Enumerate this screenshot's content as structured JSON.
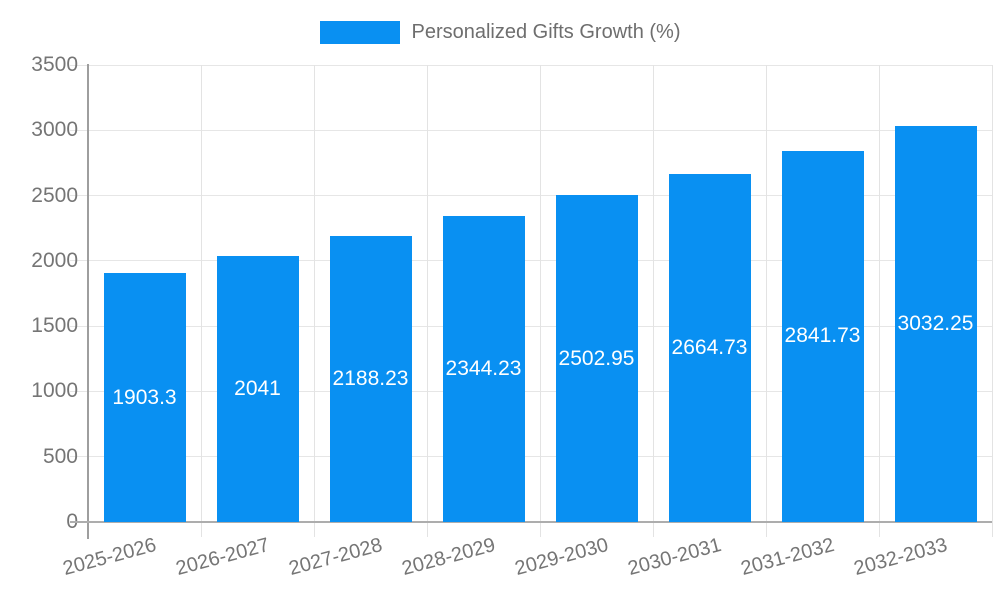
{
  "chart_data": {
    "type": "bar",
    "title": "Personalized Gifts Growth (%)",
    "categories": [
      "2025-2026",
      "2026-2027",
      "2027-2028",
      "2028-2029",
      "2029-2030",
      "2030-2031",
      "2031-2032",
      "2032-2033"
    ],
    "values": [
      1903.3,
      2041,
      2188.23,
      2344.23,
      2502.95,
      2664.73,
      2841.73,
      3032.25
    ],
    "value_labels": [
      "1903.3",
      "2041",
      "2188.23",
      "2344.23",
      "2502.95",
      "2664.73",
      "2841.73",
      "3032.25"
    ],
    "ylim": [
      0,
      3500
    ],
    "ytick_step": 500,
    "ytick_labels": [
      "0",
      "500",
      "1000",
      "1500",
      "2000",
      "2500",
      "3000",
      "3500"
    ],
    "xlabel": "",
    "ylabel": "",
    "legend_position": "top",
    "grid": true,
    "bar_color": "#0990f2",
    "value_label_color": "#ffffff",
    "axis_text_color": "#757575"
  }
}
